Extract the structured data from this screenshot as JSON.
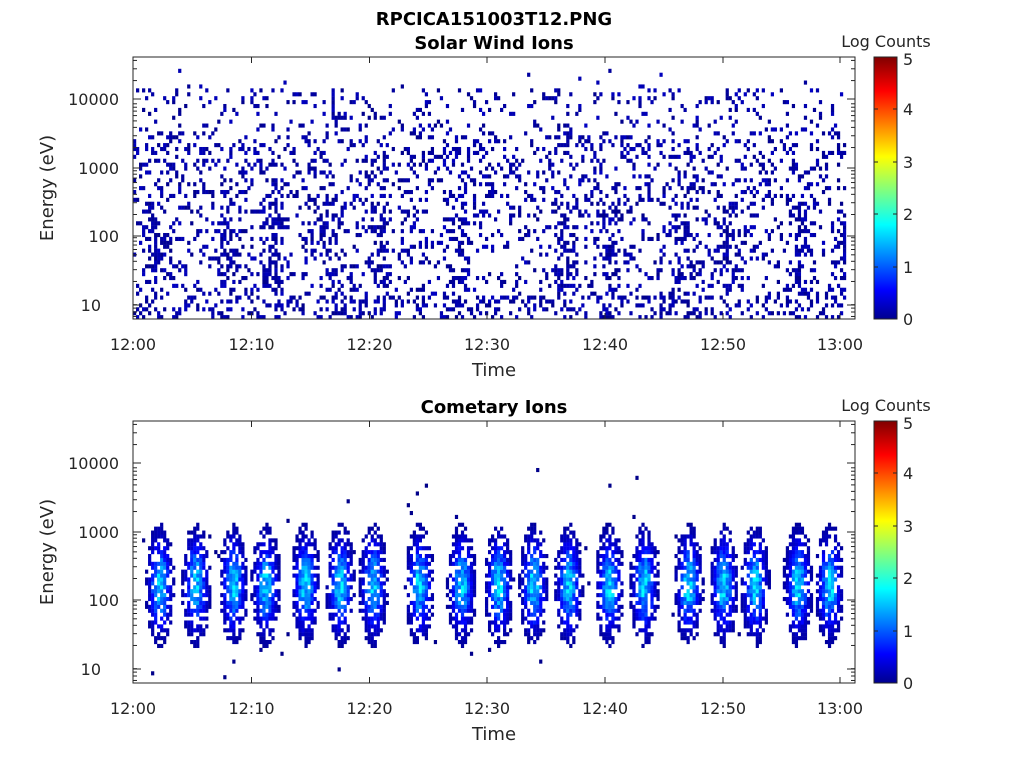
{
  "figure": {
    "title": "RPCICA151003T12.PNG"
  },
  "chart_data": [
    {
      "type": "heatmap",
      "title": "Solar Wind Ions",
      "xlabel": "Time",
      "ylabel": "Energy (eV)",
      "x_tick_labels": [
        "12:00",
        "12:10",
        "12:20",
        "12:30",
        "12:40",
        "12:50",
        "13:00"
      ],
      "x_tick_minutes": [
        0,
        10,
        20,
        30,
        40,
        50,
        60
      ],
      "xlim_minutes": [
        0,
        62
      ],
      "y_scale": "log",
      "y_tick_labels": [
        "10",
        "100",
        "1000",
        "10000"
      ],
      "y_tick_values": [
        10,
        100,
        1000,
        10000
      ],
      "ylim": [
        5.5,
        45000
      ],
      "colorbar": {
        "label": "Log Counts",
        "range": [
          0,
          5
        ],
        "tick_labels": [
          "0",
          "1",
          "2",
          "3",
          "4",
          "5"
        ],
        "colormap": "jet"
      },
      "intensity_pattern": {
        "description_level": "sparse low counts (log counts mostly 0-0.3) across 5-30000 eV, denser below 300 eV",
        "enhanced_time_minutes": [
          2,
          8,
          12,
          17,
          21,
          28,
          37,
          41,
          47,
          51,
          57,
          61
        ],
        "max_log_counts": 0.35
      }
    },
    {
      "type": "heatmap",
      "title": "Cometary Ions",
      "xlabel": "Time",
      "ylabel": "Energy (eV)",
      "x_tick_labels": [
        "12:00",
        "12:10",
        "12:20",
        "12:30",
        "12:40",
        "12:50",
        "13:00"
      ],
      "x_tick_minutes": [
        0,
        10,
        20,
        30,
        40,
        50,
        60
      ],
      "xlim_minutes": [
        0,
        62
      ],
      "y_scale": "log",
      "y_tick_labels": [
        "10",
        "100",
        "1000",
        "10000"
      ],
      "y_tick_values": [
        10,
        100,
        1000,
        10000
      ],
      "ylim": [
        5.5,
        45000
      ],
      "colorbar": {
        "label": "Log Counts",
        "range": [
          0,
          5
        ],
        "tick_labels": [
          "0",
          "1",
          "2",
          "3",
          "4",
          "5"
        ],
        "colormap": "jet"
      },
      "intensity_pattern": {
        "burst_center_minutes": [
          2.2,
          5.3,
          8.5,
          11.3,
          14.7,
          17.7,
          20.5,
          24.5,
          28.1,
          31.3,
          34.3,
          37.3,
          40.8,
          43.8,
          47.6,
          50.6,
          53.3,
          57,
          59.7
        ],
        "burst_energy_range_ev": [
          20,
          1500
        ],
        "burst_peak_energy_ev": 150,
        "max_log_counts": 1.9
      }
    }
  ]
}
